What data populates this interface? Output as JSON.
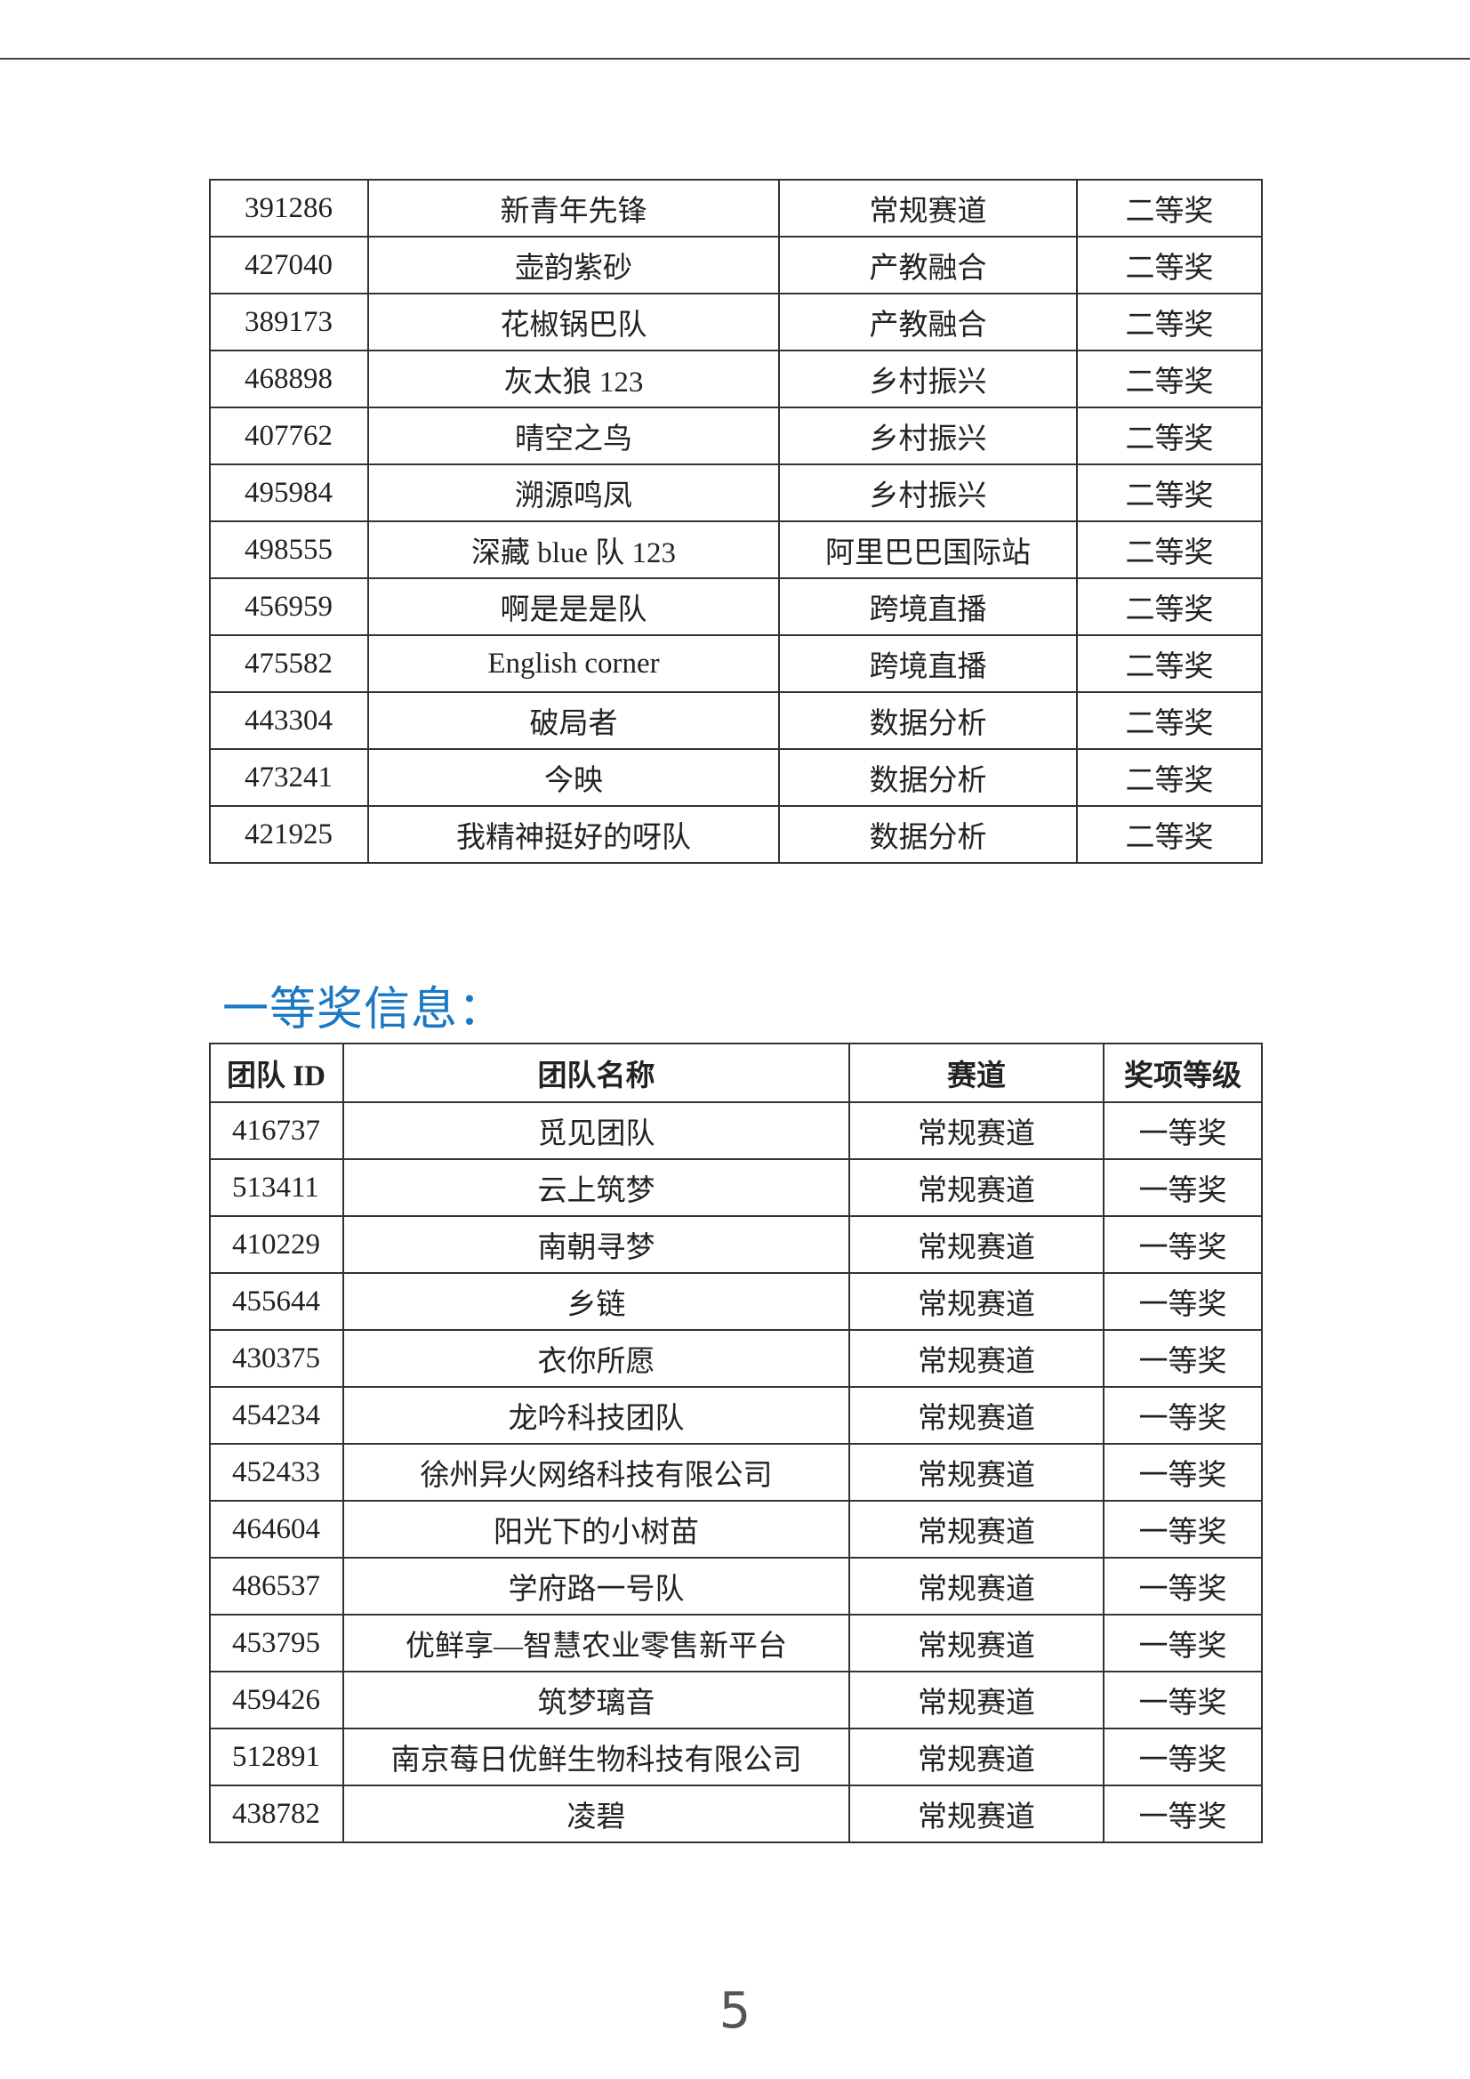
{
  "second_prize_rows": [
    [
      "391286",
      "新青年先锋",
      "常规赛道",
      "二等奖"
    ],
    [
      "427040",
      "壶韵紫砂",
      "产教融合",
      "二等奖"
    ],
    [
      "389173",
      "花椒锅巴队",
      "产教融合",
      "二等奖"
    ],
    [
      "468898",
      "灰太狼 123",
      "乡村振兴",
      "二等奖"
    ],
    [
      "407762",
      "晴空之鸟",
      "乡村振兴",
      "二等奖"
    ],
    [
      "495984",
      "溯源鸣凤",
      "乡村振兴",
      "二等奖"
    ],
    [
      "498555",
      "深藏 blue 队 123",
      "阿里巴巴国际站",
      "二等奖"
    ],
    [
      "456959",
      "啊是是是队",
      "跨境直播",
      "二等奖"
    ],
    [
      "475582",
      "English corner",
      "跨境直播",
      "二等奖"
    ],
    [
      "443304",
      "破局者",
      "数据分析",
      "二等奖"
    ],
    [
      "473241",
      "今映",
      "数据分析",
      "二等奖"
    ],
    [
      "421925",
      "我精神挺好的呀队",
      "数据分析",
      "二等奖"
    ]
  ],
  "first_prize": {
    "heading": "一等奖信息：",
    "headers": [
      "团队 ID",
      "团队名称",
      "赛道",
      "奖项等级"
    ],
    "rows": [
      [
        "416737",
        "觅见团队",
        "常规赛道",
        "一等奖"
      ],
      [
        "513411",
        "云上筑梦",
        "常规赛道",
        "一等奖"
      ],
      [
        "410229",
        "南朝寻梦",
        "常规赛道",
        "一等奖"
      ],
      [
        "455644",
        "乡链",
        "常规赛道",
        "一等奖"
      ],
      [
        "430375",
        "衣你所愿",
        "常规赛道",
        "一等奖"
      ],
      [
        "454234",
        "龙吟科技团队",
        "常规赛道",
        "一等奖"
      ],
      [
        "452433",
        "徐州异火网络科技有限公司",
        "常规赛道",
        "一等奖"
      ],
      [
        "464604",
        "阳光下的小树苗",
        "常规赛道",
        "一等奖"
      ],
      [
        "486537",
        "学府路一号队",
        "常规赛道",
        "一等奖"
      ],
      [
        "453795",
        "优鲜享—智慧农业零售新平台",
        "常规赛道",
        "一等奖"
      ],
      [
        "459426",
        "筑梦璃音",
        "常规赛道",
        "一等奖"
      ],
      [
        "512891",
        "南京莓日优鲜生物科技有限公司",
        "常规赛道",
        "一等奖"
      ],
      [
        "438782",
        "凌碧",
        "常规赛道",
        "一等奖"
      ]
    ]
  },
  "page_number": "5",
  "colors": {
    "heading": "#1b78c2"
  }
}
